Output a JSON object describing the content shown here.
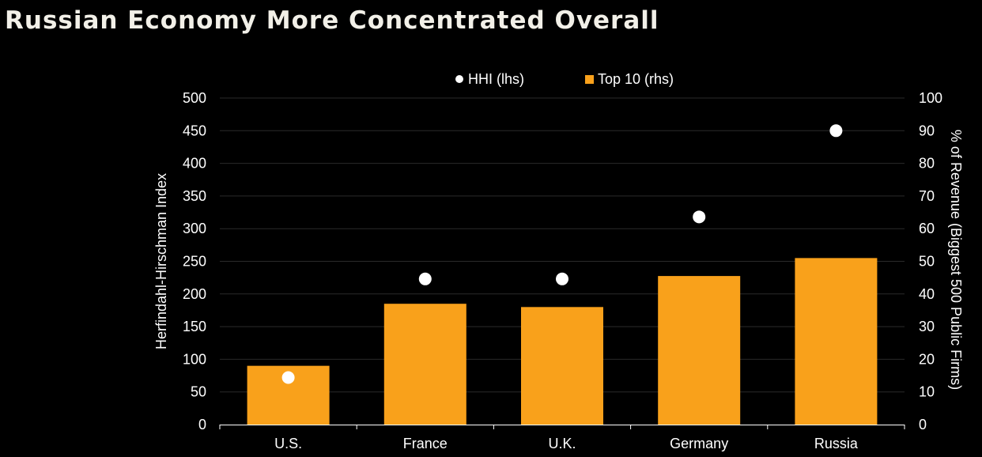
{
  "title": "Russian Economy More Concentrated Overall",
  "colors": {
    "background": "#000000",
    "bar": "#f9a11b",
    "marker": "#ffffff",
    "text": "#ffffff",
    "grid": "#2a2a2a"
  },
  "chart_data": {
    "type": "bar",
    "categories": [
      "U.S.",
      "France",
      "U.K.",
      "Germany",
      "Russia"
    ],
    "series": [
      {
        "name": "Top 10 (rhs)",
        "kind": "bar",
        "axis": "right",
        "values": [
          18,
          37,
          36,
          45.5,
          51
        ]
      },
      {
        "name": "HHI (lhs)",
        "kind": "scatter",
        "axis": "left",
        "values": [
          72,
          223,
          223,
          318,
          450
        ]
      }
    ],
    "ylabel_left": "Herfindahl-Hirschman Index",
    "ylabel_right": "% of Revenue (Biggest 500 Public Firms)",
    "ylim_left": [
      0,
      500
    ],
    "ylim_right": [
      0,
      100
    ],
    "yticks_left": [
      "0",
      "50",
      "100",
      "150",
      "200",
      "250",
      "300",
      "350",
      "400",
      "450",
      "500"
    ],
    "yticks_right": [
      "0",
      "10",
      "20",
      "30",
      "40",
      "50",
      "60",
      "70",
      "80",
      "90",
      "100"
    ],
    "legend_position": "top",
    "grid": true
  }
}
